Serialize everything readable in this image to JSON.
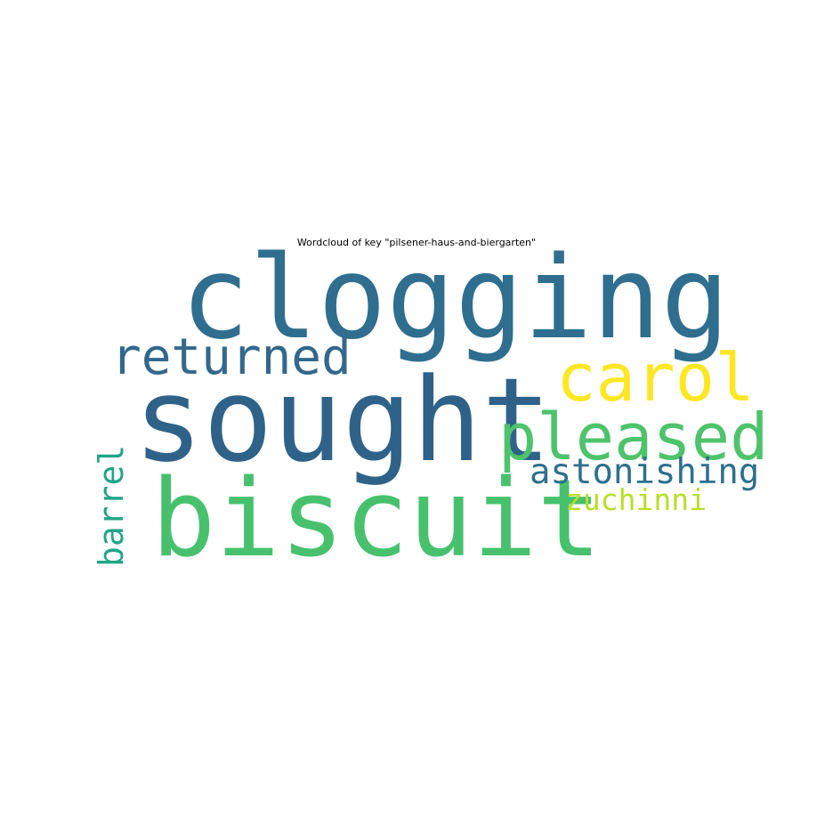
{
  "chart_data": {
    "type": "wordcloud",
    "title": "Wordcloud of key \"pilsener-haus-and-biergarten\"",
    "words": [
      {
        "text": "clogging",
        "color": "#2f6e8e",
        "orientation": "horizontal"
      },
      {
        "text": "sought",
        "color": "#2f6289",
        "orientation": "horizontal"
      },
      {
        "text": "biscuit",
        "color": "#48c16e",
        "orientation": "horizontal"
      },
      {
        "text": "pleased",
        "color": "#4ec36b",
        "orientation": "horizontal"
      },
      {
        "text": "carol",
        "color": "#fde725",
        "orientation": "horizontal"
      },
      {
        "text": "returned",
        "color": "#33688d",
        "orientation": "horizontal"
      },
      {
        "text": "astonishing",
        "color": "#2e6f8e",
        "orientation": "horizontal"
      },
      {
        "text": "zuchinni",
        "color": "#b8de29",
        "orientation": "horizontal"
      },
      {
        "text": "barrel",
        "color": "#21a585",
        "orientation": "vertical"
      }
    ]
  }
}
